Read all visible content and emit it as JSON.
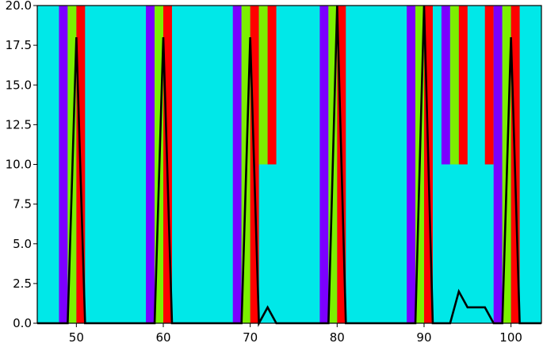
{
  "chart_data": {
    "type": "bar",
    "xlim": [
      45.5,
      103.5
    ],
    "ylim": [
      0,
      20
    ],
    "background_color": "#00e8e8",
    "grid": false,
    "legend": "none",
    "x_ticks": [
      50,
      60,
      70,
      80,
      90,
      100
    ],
    "y_ticks": [
      0.0,
      2.5,
      5.0,
      7.5,
      10.0,
      12.5,
      15.0,
      17.5,
      20.0
    ],
    "x_tick_labels": [
      "50",
      "60",
      "70",
      "80",
      "90",
      "100"
    ],
    "y_tick_labels": [
      "0.0",
      "2.5",
      "5.0",
      "7.5",
      "10.0",
      "12.5",
      "15.0",
      "17.5",
      "20.0"
    ],
    "bars": [
      {
        "x_start": 48,
        "x_end": 49,
        "y_bottom": 0,
        "y_top": 20,
        "color": "#7b00ff"
      },
      {
        "x_start": 49,
        "x_end": 50,
        "y_bottom": 0,
        "y_top": 20,
        "color": "#7cf000"
      },
      {
        "x_start": 50,
        "x_end": 51,
        "y_bottom": 0,
        "y_top": 20,
        "color": "#ff0000"
      },
      {
        "x_start": 58,
        "x_end": 59,
        "y_bottom": 0,
        "y_top": 20,
        "color": "#7b00ff"
      },
      {
        "x_start": 59,
        "x_end": 60,
        "y_bottom": 0,
        "y_top": 20,
        "color": "#7cf000"
      },
      {
        "x_start": 60,
        "x_end": 61,
        "y_bottom": 0,
        "y_top": 20,
        "color": "#ff0000"
      },
      {
        "x_start": 68,
        "x_end": 69,
        "y_bottom": 0,
        "y_top": 20,
        "color": "#7b00ff"
      },
      {
        "x_start": 69,
        "x_end": 70,
        "y_bottom": 0,
        "y_top": 20,
        "color": "#7cf000"
      },
      {
        "x_start": 70,
        "x_end": 71,
        "y_bottom": 0,
        "y_top": 20,
        "color": "#ff0000"
      },
      {
        "x_start": 71,
        "x_end": 72,
        "y_bottom": 10,
        "y_top": 20,
        "color": "#7cf000"
      },
      {
        "x_start": 72,
        "x_end": 73,
        "y_bottom": 10,
        "y_top": 20,
        "color": "#ff0000"
      },
      {
        "x_start": 78,
        "x_end": 79,
        "y_bottom": 0,
        "y_top": 20,
        "color": "#7b00ff"
      },
      {
        "x_start": 79,
        "x_end": 80,
        "y_bottom": 0,
        "y_top": 20,
        "color": "#7cf000"
      },
      {
        "x_start": 80,
        "x_end": 81,
        "y_bottom": 0,
        "y_top": 20,
        "color": "#ff0000"
      },
      {
        "x_start": 88,
        "x_end": 89,
        "y_bottom": 0,
        "y_top": 20,
        "color": "#7b00ff"
      },
      {
        "x_start": 89,
        "x_end": 90,
        "y_bottom": 0,
        "y_top": 20,
        "color": "#7cf000"
      },
      {
        "x_start": 90,
        "x_end": 91,
        "y_bottom": 0,
        "y_top": 20,
        "color": "#ff0000"
      },
      {
        "x_start": 92,
        "x_end": 93,
        "y_bottom": 10,
        "y_top": 20,
        "color": "#7b00ff"
      },
      {
        "x_start": 93,
        "x_end": 94,
        "y_bottom": 10,
        "y_top": 20,
        "color": "#7cf000"
      },
      {
        "x_start": 94,
        "x_end": 95,
        "y_bottom": 10,
        "y_top": 20,
        "color": "#ff0000"
      },
      {
        "x_start": 97,
        "x_end": 98,
        "y_bottom": 10,
        "y_top": 20,
        "color": "#ff0000"
      },
      {
        "x_start": 98,
        "x_end": 99,
        "y_bottom": 0,
        "y_top": 20,
        "color": "#7b00ff"
      },
      {
        "x_start": 99,
        "x_end": 100,
        "y_bottom": 0,
        "y_top": 20,
        "color": "#7cf000"
      },
      {
        "x_start": 100,
        "x_end": 101,
        "y_bottom": 0,
        "y_top": 20,
        "color": "#ff0000"
      }
    ],
    "series": [
      {
        "color": "#000000",
        "x": [
          45.5,
          49,
          50,
          51,
          59,
          60,
          61,
          69,
          70,
          71,
          72,
          73,
          79,
          80,
          81,
          89,
          90,
          91,
          93,
          94,
          95,
          97,
          98,
          99,
          100,
          101,
          103.5
        ],
        "y": [
          0,
          0,
          18,
          0,
          0,
          18,
          0,
          0,
          18,
          0,
          1,
          0,
          0,
          20,
          0,
          0,
          20,
          0,
          0,
          2,
          1,
          1,
          0,
          0,
          18,
          0,
          0
        ]
      }
    ]
  }
}
